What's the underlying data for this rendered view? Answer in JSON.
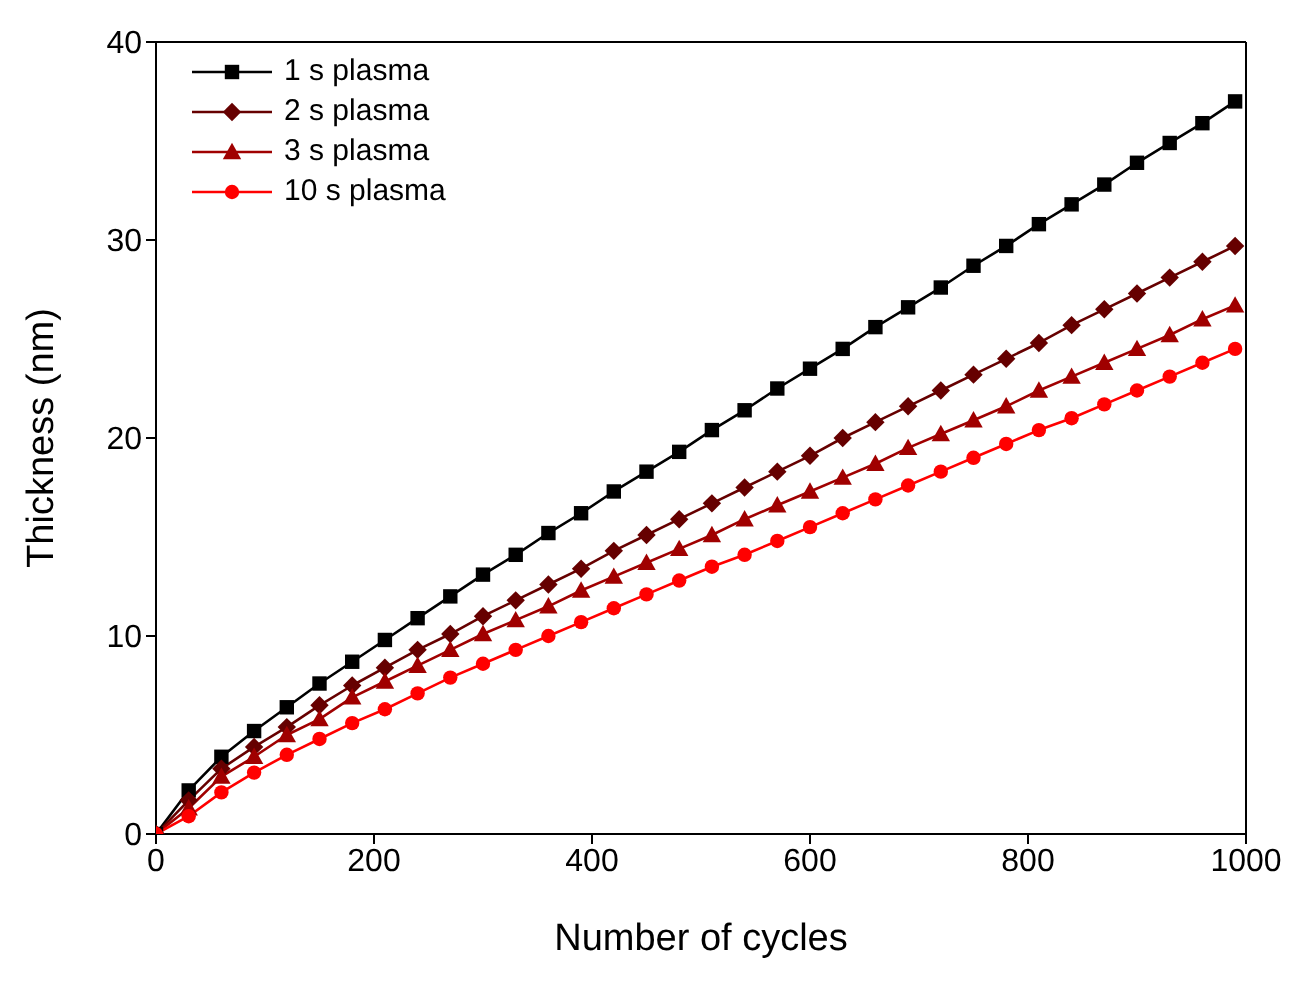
{
  "chart_data": {
    "type": "line",
    "xlabel": "Number of cycles",
    "ylabel": "Thickness (nm)",
    "x": [
      0,
      30,
      60,
      90,
      120,
      150,
      180,
      210,
      240,
      270,
      300,
      330,
      360,
      390,
      420,
      450,
      480,
      510,
      540,
      570,
      600,
      630,
      660,
      690,
      720,
      750,
      780,
      810,
      840,
      870,
      900,
      930,
      960,
      990
    ],
    "xlim": [
      0,
      1000
    ],
    "xticks": [
      0,
      200,
      400,
      600,
      800,
      1000
    ],
    "ylim": [
      0,
      40
    ],
    "yticks": [
      0,
      10,
      20,
      30,
      40
    ],
    "grid": false,
    "legend": "top left",
    "line_style": "solid",
    "series": [
      {
        "name": "1 s plasma",
        "color": "#000000",
        "marker": "square",
        "values": [
          0,
          2.2,
          3.9,
          5.2,
          6.4,
          7.6,
          8.7,
          9.8,
          10.9,
          12.0,
          13.1,
          14.1,
          15.2,
          16.2,
          17.3,
          18.3,
          19.3,
          20.4,
          21.4,
          22.5,
          23.5,
          24.5,
          25.6,
          26.6,
          27.6,
          28.7,
          29.7,
          30.8,
          31.8,
          32.8,
          33.9,
          34.9,
          35.9,
          37.0
        ]
      },
      {
        "name": "2 s plasma",
        "color": "#660000",
        "marker": "diamond",
        "values": [
          0,
          1.7,
          3.3,
          4.4,
          5.4,
          6.5,
          7.5,
          8.4,
          9.3,
          10.1,
          11.0,
          11.8,
          12.6,
          13.4,
          14.3,
          15.1,
          15.9,
          16.7,
          17.5,
          18.3,
          19.1,
          20.0,
          20.8,
          21.6,
          22.4,
          23.2,
          24.0,
          24.8,
          25.7,
          26.5,
          27.3,
          28.1,
          28.9,
          29.7
        ]
      },
      {
        "name": "3 s plasma",
        "color": "#a00000",
        "marker": "triangle",
        "values": [
          0,
          1.3,
          2.9,
          3.9,
          5.0,
          5.8,
          6.9,
          7.7,
          8.5,
          9.3,
          10.1,
          10.8,
          11.5,
          12.3,
          13.0,
          13.7,
          14.4,
          15.1,
          15.9,
          16.6,
          17.3,
          18.0,
          18.7,
          19.5,
          20.2,
          20.9,
          21.6,
          22.4,
          23.1,
          23.8,
          24.5,
          25.2,
          26.0,
          26.7
        ]
      },
      {
        "name": "10 s plasma",
        "color": "#ff0000",
        "marker": "circle",
        "values": [
          0,
          0.9,
          2.1,
          3.1,
          4.0,
          4.8,
          5.6,
          6.3,
          7.1,
          7.9,
          8.6,
          9.3,
          10.0,
          10.7,
          11.4,
          12.1,
          12.8,
          13.5,
          14.1,
          14.8,
          15.5,
          16.2,
          16.9,
          17.6,
          18.3,
          19.0,
          19.7,
          20.4,
          21.0,
          21.7,
          22.4,
          23.1,
          23.8,
          24.5
        ]
      }
    ]
  }
}
